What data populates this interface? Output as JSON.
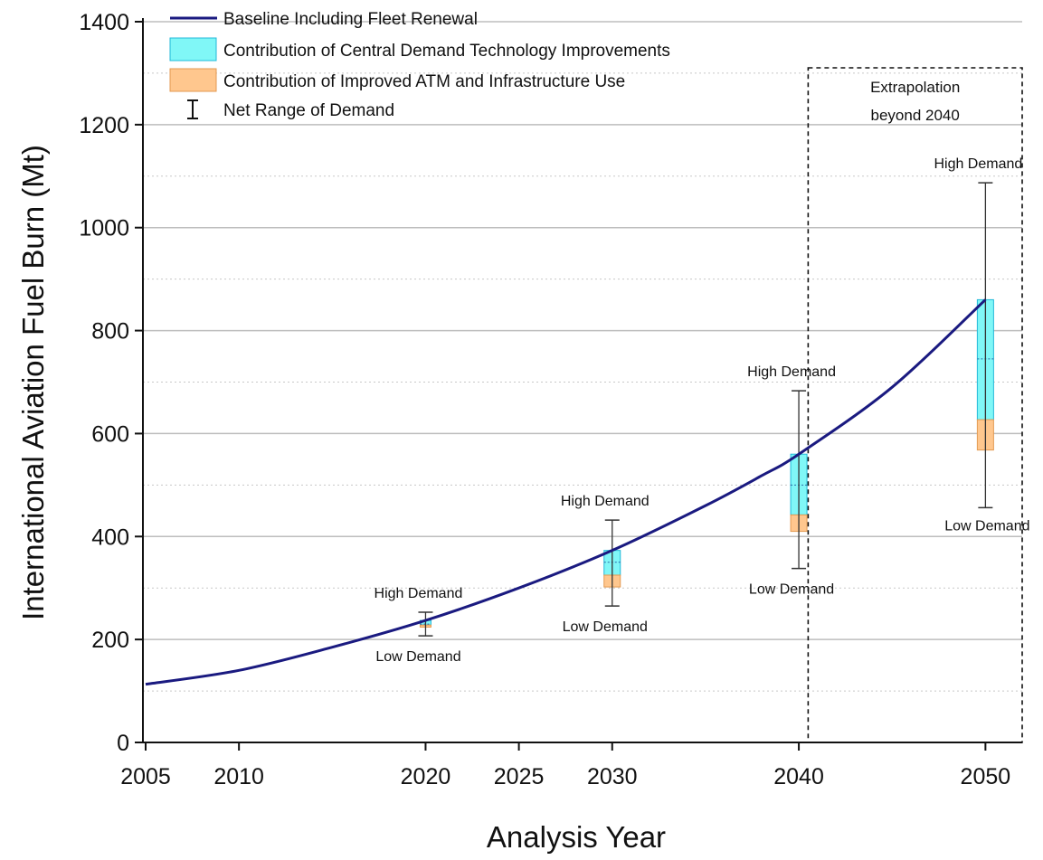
{
  "chart_data": {
    "type": "line",
    "xlabel": "Analysis Year",
    "ylabel": "International Aviation Fuel Burn (Mt)",
    "xlim": [
      2005,
      2052
    ],
    "ylim": [
      0,
      1400
    ],
    "x_ticks": [
      2005,
      2010,
      2020,
      2025,
      2030,
      2040,
      2050
    ],
    "y_ticks": [
      0,
      200,
      400,
      600,
      800,
      1000,
      1200,
      1400
    ],
    "grid": "horizontal",
    "legend_position": "top-left",
    "legend": [
      {
        "label": "Baseline Including Fleet Renewal",
        "kind": "line",
        "color": "#1a1a80"
      },
      {
        "label": "Contribution of Central Demand Technology Improvements",
        "kind": "box",
        "color": "#80f7f7"
      },
      {
        "label": "Contribution of Improved ATM and Infrastructure Use",
        "kind": "box",
        "color": "#ffc78e"
      },
      {
        "label": "Net Range of Demand",
        "kind": "errorbar",
        "color": "#111111"
      }
    ],
    "baseline": {
      "name": "Baseline Including Fleet Renewal",
      "color": "#1a1a80",
      "x": [
        2005,
        2010,
        2015,
        2020,
        2025,
        2030,
        2035,
        2038,
        2040,
        2045,
        2050
      ],
      "y": [
        113,
        140,
        185,
        237,
        300,
        373,
        460,
        518,
        560,
        690,
        860
      ]
    },
    "bars": [
      {
        "x": 2020,
        "baseline": 237,
        "tech_bottom": 228,
        "atm_bottom": 224,
        "central": 230,
        "high": 253,
        "low": 207,
        "high_label": "High Demand",
        "low_label": "Low Demand"
      },
      {
        "x": 2030,
        "baseline": 373,
        "tech_bottom": 325,
        "atm_bottom": 302,
        "central": 350,
        "high": 432,
        "low": 265,
        "high_label": "High Demand",
        "low_label": "Low Demand"
      },
      {
        "x": 2040,
        "baseline": 560,
        "tech_bottom": 442,
        "atm_bottom": 410,
        "central": 500,
        "high": 683,
        "low": 338,
        "high_label": "High Demand",
        "low_label": "Low Demand"
      },
      {
        "x": 2050,
        "baseline": 860,
        "tech_bottom": 627,
        "atm_bottom": 568,
        "central": 745,
        "high": 1087,
        "low": 456,
        "high_label": "High Demand",
        "low_label": "Low Demand"
      }
    ],
    "extrapolation": {
      "from_x": 2040.5,
      "label_line1": "Extrapolation",
      "label_line2": "beyond 2040"
    },
    "colors": {
      "tech": "#80f7f7",
      "tech_stroke": "#22b8d8",
      "atm": "#ffc78e",
      "atm_stroke": "#e39a52",
      "grid": "#bdbdbd",
      "grid_minor": "#c8c8c8"
    }
  }
}
